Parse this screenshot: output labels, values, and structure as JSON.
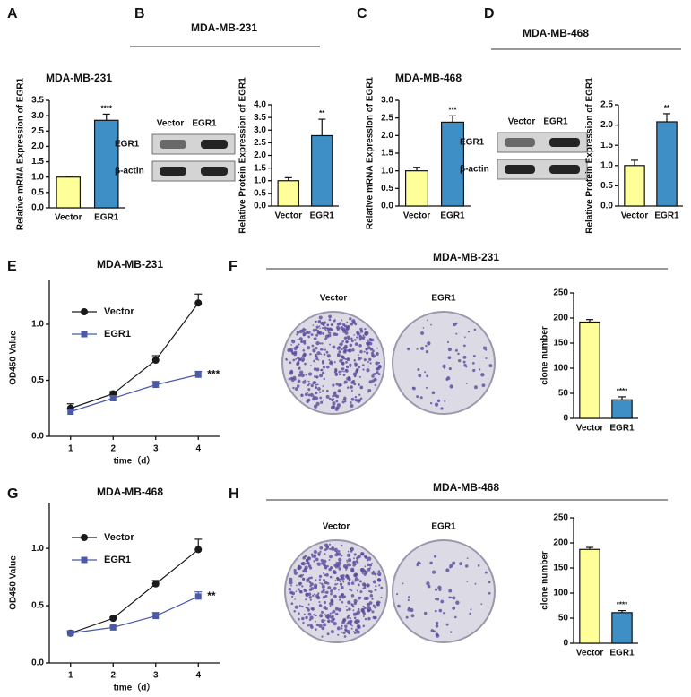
{
  "chart_data": [
    {
      "type": "bar",
      "panel": "A",
      "title": "MDA-MB-231",
      "ylabel": "Relative mRNA Expression of EGR1",
      "categories": [
        "Vector",
        "EGR1"
      ],
      "values": [
        1.0,
        2.85
      ],
      "errors": [
        0.03,
        0.2
      ],
      "colors": [
        "#ffff99",
        "#3d8fc6"
      ],
      "significance": "****",
      "ylim": [
        0,
        3.5
      ],
      "yticks": [
        {
          "value": 0,
          "label": "0.0"
        },
        0.5,
        {
          "value": 1,
          "label": "1.0"
        },
        1.5,
        {
          "value": 2,
          "label": "2.0"
        },
        2.5,
        {
          "value": 3,
          "label": "3.0"
        },
        3.5
      ]
    },
    {
      "type": "bar",
      "panel": "B",
      "header": "MDA-MB-231",
      "blot": {
        "columns": [
          "Vector",
          "EGR1"
        ],
        "rows": [
          "EGR1",
          "β-actin"
        ]
      },
      "ylabel": "Relative Protein Expression of EGR1",
      "categories": [
        "Vector",
        "EGR1"
      ],
      "values": [
        1.0,
        2.78
      ],
      "errors": [
        0.12,
        0.65
      ],
      "colors": [
        "#ffff99",
        "#3d8fc6"
      ],
      "significance": "**",
      "ylim": [
        0,
        4
      ],
      "yticks": [
        {
          "value": 0,
          "label": "0.0"
        },
        0.5,
        {
          "value": 1,
          "label": "1.0"
        },
        1.5,
        {
          "value": 2,
          "label": "2.0"
        },
        2.5,
        {
          "value": 3,
          "label": "3.0"
        },
        3.5,
        {
          "value": 4,
          "label": "4.0"
        }
      ]
    },
    {
      "type": "bar",
      "panel": "C",
      "title": "MDA-MB-468",
      "ylabel": "Relative mRNA Expression of EGR1",
      "categories": [
        "Vector",
        "EGR1"
      ],
      "values": [
        1.0,
        2.38
      ],
      "errors": [
        0.1,
        0.18
      ],
      "colors": [
        "#ffff99",
        "#3d8fc6"
      ],
      "significance": "***",
      "ylim": [
        0,
        3
      ],
      "yticks": [
        {
          "value": 0,
          "label": "0.0"
        },
        0.5,
        {
          "value": 1,
          "label": "1.0"
        },
        1.5,
        {
          "value": 2,
          "label": "2.0"
        },
        2.5,
        {
          "value": 3,
          "label": "3.0"
        }
      ]
    },
    {
      "type": "bar",
      "panel": "D",
      "header": "MDA-MB-468",
      "blot": {
        "columns": [
          "Vector",
          "EGR1"
        ],
        "rows": [
          "EGR1",
          "β-actin"
        ]
      },
      "ylabel": "Relative Protein Expression of EGR1",
      "categories": [
        "Vector",
        "EGR1"
      ],
      "values": [
        1.0,
        2.08
      ],
      "errors": [
        0.13,
        0.2
      ],
      "colors": [
        "#ffff99",
        "#3d8fc6"
      ],
      "significance": "**",
      "ylim": [
        0,
        2.5
      ],
      "yticks": [
        {
          "value": 0,
          "label": "0.0"
        },
        0.5,
        {
          "value": 1,
          "label": "1.0"
        },
        1.5,
        {
          "value": 2,
          "label": "2.0"
        },
        2.5
      ]
    },
    {
      "type": "line",
      "panel": "E",
      "title": "MDA-MB-231",
      "xlabel": "time（d）",
      "ylabel": "OD450 Value",
      "x": [
        1,
        2,
        3,
        4
      ],
      "xlim": [
        0.5,
        4.5
      ],
      "xticks": [
        1,
        2,
        3,
        4
      ],
      "ylim": [
        0,
        1.4
      ],
      "yticks": [
        {
          "value": 0,
          "label": "0.0"
        },
        0.5,
        {
          "value": 1,
          "label": "1.0"
        }
      ],
      "series": [
        {
          "name": "Vector",
          "color": "#1a1a1a",
          "marker": "circle",
          "values": [
            0.25,
            0.38,
            0.68,
            1.19
          ],
          "errors": [
            0.04,
            0.02,
            0.04,
            0.08
          ]
        },
        {
          "name": "EGR1",
          "color": "#4a5aa8",
          "marker": "square",
          "values": [
            0.22,
            0.34,
            0.46,
            0.55
          ],
          "errors": [
            0.02,
            0.02,
            0.03,
            0.03
          ]
        }
      ],
      "significance": "***"
    },
    {
      "type": "bar",
      "panel": "F",
      "header": "MDA-MB-231",
      "dishes": [
        "Vector",
        "EGR1"
      ],
      "ylabel": "clone number",
      "categories": [
        "Vector",
        "EGR1"
      ],
      "values": [
        192,
        37
      ],
      "errors": [
        5,
        6
      ],
      "colors": [
        "#ffff99",
        "#3d8fc6"
      ],
      "significance": "****",
      "ylim": [
        0,
        250
      ],
      "yticks": [
        0,
        50,
        100,
        150,
        200,
        250
      ]
    },
    {
      "type": "line",
      "panel": "G",
      "title": "MDA-MB-468",
      "xlabel": "time（d）",
      "ylabel": "OD450 Value",
      "x": [
        1,
        2,
        3,
        4
      ],
      "xlim": [
        0.5,
        4.5
      ],
      "xticks": [
        1,
        2,
        3,
        4
      ],
      "ylim": [
        0,
        1.4
      ],
      "yticks": [
        {
          "value": 0,
          "label": "0.0"
        },
        0.5,
        {
          "value": 1,
          "label": "1.0"
        }
      ],
      "series": [
        {
          "name": "Vector",
          "color": "#1a1a1a",
          "marker": "circle",
          "values": [
            0.26,
            0.39,
            0.69,
            0.99
          ],
          "errors": [
            0.02,
            0.01,
            0.03,
            0.09
          ]
        },
        {
          "name": "EGR1",
          "color": "#4a5aa8",
          "marker": "square",
          "values": [
            0.26,
            0.31,
            0.41,
            0.58
          ],
          "errors": [
            0.02,
            0.01,
            0.03,
            0.04
          ]
        }
      ],
      "significance": "**"
    },
    {
      "type": "bar",
      "panel": "H",
      "header": "MDA-MB-468",
      "dishes": [
        "Vector",
        "EGR1"
      ],
      "ylabel": "clone number",
      "categories": [
        "Vector",
        "EGR1"
      ],
      "values": [
        187,
        61
      ],
      "errors": [
        4,
        4
      ],
      "colors": [
        "#ffff99",
        "#3d8fc6"
      ],
      "significance": "****",
      "ylim": [
        0,
        250
      ],
      "yticks": [
        0,
        50,
        100,
        150,
        200,
        250
      ]
    }
  ]
}
